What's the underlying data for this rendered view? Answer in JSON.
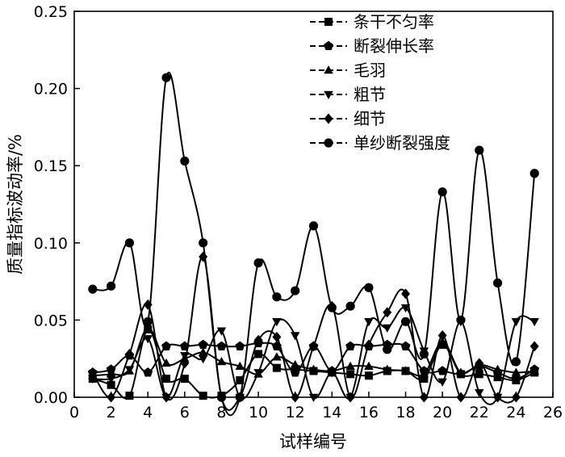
{
  "chart_data": {
    "type": "line",
    "xlabel": "试样编号",
    "ylabel": "质量指标波动率/%",
    "xlim": [
      0,
      26
    ],
    "ylim": [
      0,
      0.25
    ],
    "x_ticks": [
      0,
      2,
      4,
      6,
      8,
      10,
      12,
      14,
      16,
      18,
      20,
      22,
      24,
      26
    ],
    "y_ticks": [
      "0.00",
      "0.05",
      "0.10",
      "0.15",
      "0.20",
      "0.25"
    ],
    "grid": false,
    "legend_position": "top-right",
    "smooth": true,
    "x": [
      1,
      2,
      3,
      4,
      5,
      6,
      7,
      8,
      9,
      10,
      11,
      12,
      13,
      14,
      15,
      16,
      17,
      18,
      19,
      20,
      21,
      22,
      23,
      24,
      25
    ],
    "series": [
      {
        "name": "条干不匀率",
        "marker": "square",
        "values": [
          0.012,
          0.008,
          0.001,
          0.044,
          0.012,
          0.012,
          0.001,
          0.001,
          0.011,
          0.028,
          0.019,
          0.018,
          0.017,
          0.016,
          0.015,
          0.014,
          0.017,
          0.017,
          0.012,
          0.034,
          0.015,
          0.015,
          0.013,
          0.011,
          0.016
        ]
      },
      {
        "name": "断裂伸长率",
        "marker": "pentagon",
        "values": [
          0.016,
          0.018,
          0.027,
          0.016,
          0.033,
          0.033,
          0.034,
          0.033,
          0.033,
          0.035,
          0.033,
          0.016,
          0.033,
          0.017,
          0.033,
          0.033,
          0.034,
          0.033,
          0.017,
          0.017,
          0.015,
          0.02,
          0.016,
          0.012,
          0.018
        ]
      },
      {
        "name": "毛羽",
        "marker": "triangle-up",
        "values": [
          0.014,
          0.015,
          0.017,
          0.045,
          0.022,
          0.025,
          0.029,
          0.023,
          0.02,
          0.015,
          0.026,
          0.021,
          0.018,
          0.017,
          0.02,
          0.02,
          0.018,
          0.017,
          0.015,
          0.036,
          0.016,
          0.021,
          0.018,
          0.016,
          0.017
        ]
      },
      {
        "name": "粗节",
        "marker": "triangle-down",
        "values": [
          0.012,
          0.012,
          0.018,
          0.038,
          0.0,
          0.027,
          0.025,
          0.043,
          0.0,
          0.016,
          0.049,
          0.04,
          0.0,
          0.016,
          0.0,
          0.049,
          0.045,
          0.058,
          0.03,
          0.01,
          0.049,
          0.003,
          0.0,
          0.049,
          0.049
        ]
      },
      {
        "name": "细节",
        "marker": "diamond",
        "values": [
          0.016,
          0.0,
          0.028,
          0.06,
          0.0,
          0.022,
          0.091,
          0.0,
          0.0,
          0.037,
          0.039,
          0.0,
          0.033,
          0.059,
          0.0,
          0.034,
          0.055,
          0.067,
          0.0,
          0.04,
          0.0,
          0.022,
          0.0,
          0.0,
          0.033
        ]
      },
      {
        "name": "单纱断裂强度",
        "marker": "circle",
        "values": [
          0.07,
          0.072,
          0.1,
          0.049,
          0.207,
          0.153,
          0.1,
          0.0,
          0.0,
          0.087,
          0.065,
          0.069,
          0.111,
          0.058,
          0.059,
          0.071,
          0.031,
          0.049,
          0.028,
          0.133,
          0.05,
          0.16,
          0.074,
          0.023,
          0.145
        ]
      }
    ]
  }
}
